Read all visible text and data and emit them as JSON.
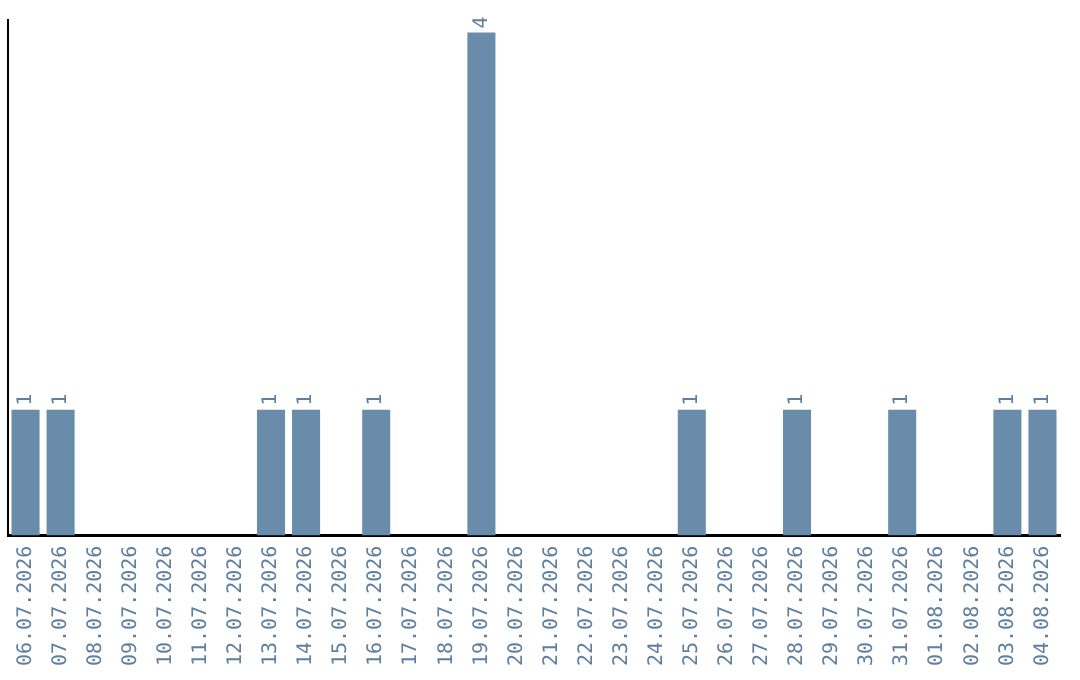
{
  "chart_data": {
    "type": "bar",
    "categories": [
      "06.07.2026",
      "07.07.2026",
      "08.07.2026",
      "09.07.2026",
      "10.07.2026",
      "11.07.2026",
      "12.07.2026",
      "13.07.2026",
      "14.07.2026",
      "15.07.2026",
      "16.07.2026",
      "17.07.2026",
      "18.07.2026",
      "19.07.2026",
      "20.07.2026",
      "21.07.2026",
      "22.07.2026",
      "23.07.2026",
      "24.07.2026",
      "25.07.2026",
      "26.07.2026",
      "27.07.2026",
      "28.07.2026",
      "29.07.2026",
      "30.07.2026",
      "31.07.2026",
      "01.08.2026",
      "02.08.2026",
      "03.08.2026",
      "04.08.2026"
    ],
    "values": [
      1,
      1,
      0,
      0,
      0,
      0,
      0,
      1,
      1,
      0,
      1,
      0,
      0,
      4,
      0,
      0,
      0,
      0,
      0,
      1,
      0,
      0,
      1,
      0,
      0,
      1,
      0,
      0,
      1,
      1
    ],
    "value_labels": [
      "1",
      "1",
      null,
      null,
      null,
      null,
      null,
      "1",
      "1",
      null,
      "1",
      null,
      null,
      "4",
      null,
      null,
      null,
      null,
      null,
      "1",
      null,
      null,
      "1",
      null,
      null,
      "1",
      null,
      null,
      "1",
      "1"
    ],
    "color": "#6a8cab",
    "ylim": [
      0,
      4.1
    ],
    "tick_labels": "x",
    "grid": false,
    "legend": false
  }
}
